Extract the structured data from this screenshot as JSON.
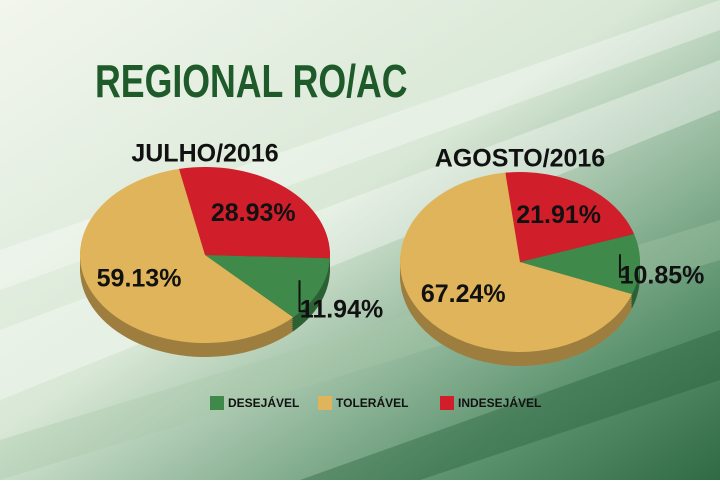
{
  "title": "REGIONAL RO/AC",
  "chart_data": [
    {
      "type": "pie",
      "title": "JULHO/2016",
      "categories": [
        "DESEJÁVEL",
        "TOLERÁVEL",
        "INDESEJÁVEL"
      ],
      "values": [
        11.94,
        59.13,
        28.93
      ],
      "value_labels": [
        "11.94%",
        "59.13%",
        "28.93%"
      ],
      "colors": [
        "#3f8a4a",
        "#e0b45a",
        "#d01f2a"
      ]
    },
    {
      "type": "pie",
      "title": "AGOSTO/2016",
      "categories": [
        "DESEJÁVEL",
        "TOLERÁVEL",
        "INDESEJÁVEL"
      ],
      "values": [
        10.85,
        67.24,
        21.91
      ],
      "value_labels": [
        "10.85%",
        "67.24%",
        "21.91%"
      ],
      "colors": [
        "#3f8a4a",
        "#e0b45a",
        "#d01f2a"
      ]
    }
  ]
}
